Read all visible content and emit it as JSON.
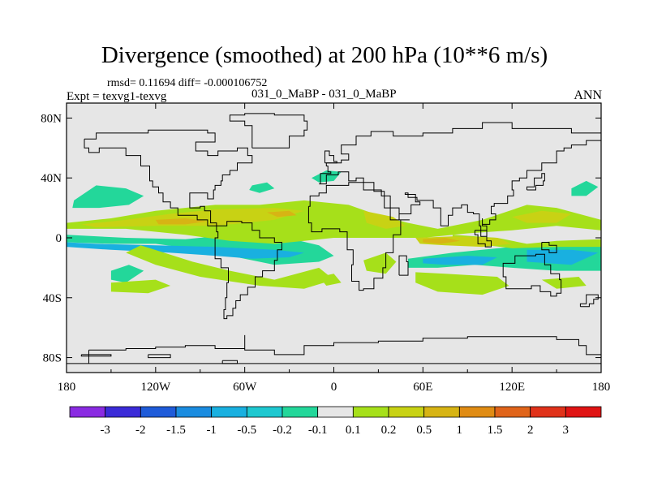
{
  "header": {
    "title": "Divergence (smoothed) at 200 hPa (10**6 m/s)",
    "stats": "rmsd= 0.11694 diff= -0.000106752",
    "expt": "Expt = texvg1-texvg",
    "case": "031_0_MaBP - 031_0_MaBP",
    "season": "ANN"
  },
  "chart_data": {
    "type": "contour-map",
    "title": "Divergence (smoothed) at 200 hPa (10**6 m/s)",
    "x_range": [
      -180,
      180
    ],
    "y_range": [
      -90,
      90
    ],
    "x_ticks": [
      {
        "value": -180,
        "label": "180"
      },
      {
        "value": -120,
        "label": "120W"
      },
      {
        "value": -60,
        "label": "60W"
      },
      {
        "value": 0,
        "label": "0"
      },
      {
        "value": 60,
        "label": "60E"
      },
      {
        "value": 120,
        "label": "120E"
      },
      {
        "value": 180,
        "label": "180"
      }
    ],
    "y_ticks": [
      {
        "value": 80,
        "label": "80N"
      },
      {
        "value": 40,
        "label": "40N"
      },
      {
        "value": 0,
        "label": "0"
      },
      {
        "value": -40,
        "label": "40S"
      },
      {
        "value": -80,
        "label": "80S"
      }
    ],
    "colorbar": {
      "colors": [
        "#8a2be2",
        "#3b2bd8",
        "#1f5bd9",
        "#1a8ce0",
        "#19b0e0",
        "#1ec8d0",
        "#23d79a",
        "#e6e6e6",
        "#a6e01a",
        "#c8d214",
        "#d7b414",
        "#e08c14",
        "#e0641a",
        "#e0321a",
        "#e01414"
      ],
      "labels": [
        "-3",
        "-2",
        "-1.5",
        "-1",
        "-0.5",
        "-0.2",
        "-0.1",
        "0.1",
        "0.2",
        "0.5",
        "1",
        "1.5",
        "2",
        "3"
      ]
    },
    "field_regions": [
      {
        "level": "-0.1",
        "color": "#23d79a",
        "points": [
          [
            -175,
            25
          ],
          [
            -160,
            35
          ],
          [
            -140,
            33
          ],
          [
            -128,
            28
          ],
          [
            -138,
            22
          ],
          [
            -158,
            20
          ],
          [
            -176,
            20
          ]
        ]
      },
      {
        "level": "-0.1",
        "color": "#23d79a",
        "points": [
          [
            -180,
            -3
          ],
          [
            -150,
            -4
          ],
          [
            -120,
            -4
          ],
          [
            -90,
            -8
          ],
          [
            -70,
            -12
          ],
          [
            -40,
            -18
          ],
          [
            -10,
            -16
          ],
          [
            0,
            -12
          ],
          [
            -10,
            -5
          ],
          [
            -40,
            2
          ],
          [
            -70,
            2
          ],
          [
            -100,
            -1
          ],
          [
            -140,
            0
          ],
          [
            -180,
            2
          ]
        ]
      },
      {
        "level": "-0.1",
        "color": "#23d79a",
        "points": [
          [
            -150,
            -22
          ],
          [
            -138,
            -18
          ],
          [
            -128,
            -22
          ],
          [
            -140,
            -30
          ],
          [
            -150,
            -28
          ]
        ]
      },
      {
        "level": "-0.1",
        "color": "#23d79a",
        "points": [
          [
            -55,
            35
          ],
          [
            -45,
            37
          ],
          [
            -40,
            33
          ],
          [
            -50,
            30
          ],
          [
            -57,
            32
          ]
        ]
      },
      {
        "level": "-0.1",
        "color": "#23d79a",
        "points": [
          [
            -15,
            40
          ],
          [
            -5,
            45
          ],
          [
            5,
            44
          ],
          [
            0,
            38
          ],
          [
            -10,
            37
          ]
        ]
      },
      {
        "level": "-0.1",
        "color": "#23d79a",
        "points": [
          [
            50,
            -14
          ],
          [
            80,
            -10
          ],
          [
            120,
            -6
          ],
          [
            150,
            -6
          ],
          [
            180,
            -5
          ],
          [
            180,
            -22
          ],
          [
            150,
            -22
          ],
          [
            120,
            -20
          ],
          [
            95,
            -18
          ],
          [
            70,
            -20
          ],
          [
            50,
            -20
          ]
        ]
      },
      {
        "level": "-0.1",
        "color": "#23d79a",
        "points": [
          [
            160,
            33
          ],
          [
            170,
            38
          ],
          [
            178,
            34
          ],
          [
            170,
            28
          ],
          [
            160,
            28
          ]
        ]
      },
      {
        "level": "-0.5",
        "color": "#19b0e0",
        "points": [
          [
            -180,
            -6
          ],
          [
            -150,
            -8
          ],
          [
            -110,
            -10
          ],
          [
            -80,
            -12
          ],
          [
            -55,
            -14
          ],
          [
            -30,
            -13
          ],
          [
            -20,
            -10
          ],
          [
            -40,
            -8
          ],
          [
            -80,
            -6
          ],
          [
            -120,
            -5
          ],
          [
            -160,
            -4
          ],
          [
            -180,
            -3
          ]
        ]
      },
      {
        "level": "-0.5",
        "color": "#19b0e0",
        "points": [
          [
            60,
            -14
          ],
          [
            90,
            -12
          ],
          [
            110,
            -13
          ],
          [
            100,
            -18
          ],
          [
            75,
            -18
          ],
          [
            60,
            -17
          ]
        ]
      },
      {
        "level": "-0.5",
        "color": "#19b0e0",
        "points": [
          [
            130,
            -8
          ],
          [
            160,
            -8
          ],
          [
            178,
            -10
          ],
          [
            160,
            -18
          ],
          [
            130,
            -16
          ]
        ]
      },
      {
        "level": "0.1",
        "color": "#a6e01a",
        "points": [
          [
            -180,
            10
          ],
          [
            -150,
            13
          ],
          [
            -120,
            18
          ],
          [
            -80,
            22
          ],
          [
            -50,
            22
          ],
          [
            -20,
            25
          ],
          [
            10,
            22
          ],
          [
            30,
            15
          ],
          [
            50,
            10
          ],
          [
            70,
            6
          ],
          [
            100,
            12
          ],
          [
            130,
            22
          ],
          [
            150,
            20
          ],
          [
            180,
            12
          ],
          [
            180,
            5
          ],
          [
            150,
            8
          ],
          [
            120,
            5
          ],
          [
            90,
            3
          ],
          [
            60,
            0
          ],
          [
            30,
            0
          ],
          [
            0,
            0
          ],
          [
            -20,
            -2
          ],
          [
            -40,
            -4
          ],
          [
            -70,
            -2
          ],
          [
            -100,
            2
          ],
          [
            -140,
            6
          ],
          [
            -180,
            6
          ]
        ]
      },
      {
        "level": "0.1",
        "color": "#a6e01a",
        "points": [
          [
            80,
            2
          ],
          [
            110,
            0
          ],
          [
            130,
            -4
          ],
          [
            150,
            -2
          ],
          [
            180,
            -1
          ],
          [
            180,
            -6
          ],
          [
            150,
            -6
          ],
          [
            120,
            -7
          ],
          [
            95,
            -4
          ],
          [
            80,
            -2
          ]
        ]
      },
      {
        "level": "0.1",
        "color": "#a6e01a",
        "points": [
          [
            -130,
            -5
          ],
          [
            -95,
            -16
          ],
          [
            -70,
            -22
          ],
          [
            -40,
            -28
          ],
          [
            -10,
            -20
          ],
          [
            0,
            -28
          ],
          [
            -20,
            -34
          ],
          [
            -50,
            -32
          ],
          [
            -90,
            -26
          ],
          [
            -120,
            -18
          ],
          [
            -140,
            -10
          ]
        ]
      },
      {
        "level": "0.1",
        "color": "#a6e01a",
        "points": [
          [
            55,
            -23
          ],
          [
            75,
            -24
          ],
          [
            110,
            -26
          ],
          [
            118,
            -32
          ],
          [
            100,
            -38
          ],
          [
            70,
            -36
          ],
          [
            55,
            -30
          ]
        ]
      },
      {
        "level": "0.1",
        "color": "#a6e01a",
        "points": [
          [
            -150,
            -30
          ],
          [
            -120,
            -28
          ],
          [
            -110,
            -32
          ],
          [
            -125,
            -37
          ],
          [
            -150,
            -36
          ]
        ]
      },
      {
        "level": "0.1",
        "color": "#a6e01a",
        "points": [
          [
            140,
            -28
          ],
          [
            165,
            -26
          ],
          [
            170,
            -32
          ],
          [
            150,
            -34
          ]
        ]
      },
      {
        "level": "0.1",
        "color": "#a6e01a",
        "points": [
          [
            20,
            -15
          ],
          [
            35,
            -10
          ],
          [
            42,
            -16
          ],
          [
            35,
            -24
          ],
          [
            22,
            -22
          ]
        ]
      },
      {
        "level": "0.1",
        "color": "#a6e01a",
        "points": [
          [
            -10,
            -26
          ],
          [
            0,
            -24
          ],
          [
            5,
            -30
          ],
          [
            -5,
            -32
          ]
        ]
      },
      {
        "level": "0.2",
        "color": "#c8d214",
        "points": [
          [
            -170,
            9
          ],
          [
            -140,
            12
          ],
          [
            -110,
            16
          ],
          [
            -80,
            19
          ],
          [
            -40,
            20
          ],
          [
            -20,
            18
          ],
          [
            -40,
            12
          ],
          [
            -80,
            8
          ],
          [
            -120,
            8
          ],
          [
            -160,
            7
          ]
        ]
      },
      {
        "level": "0.2",
        "color": "#c8d214",
        "points": [
          [
            20,
            18
          ],
          [
            40,
            14
          ],
          [
            48,
            8
          ],
          [
            35,
            6
          ],
          [
            22,
            10
          ]
        ]
      },
      {
        "level": "0.2",
        "color": "#c8d214",
        "points": [
          [
            55,
            0
          ],
          [
            80,
            1
          ],
          [
            110,
            0
          ],
          [
            120,
            -4
          ],
          [
            100,
            -6
          ],
          [
            75,
            -5
          ],
          [
            58,
            -4
          ]
        ]
      },
      {
        "level": "0.2",
        "color": "#c8d214",
        "points": [
          [
            120,
            14
          ],
          [
            140,
            18
          ],
          [
            160,
            16
          ],
          [
            150,
            10
          ],
          [
            130,
            10
          ]
        ]
      },
      {
        "level": "0.5",
        "color": "#d7b414",
        "points": [
          [
            -120,
            12
          ],
          [
            -100,
            13
          ],
          [
            -85,
            11
          ],
          [
            -100,
            9
          ],
          [
            -118,
            9
          ]
        ]
      },
      {
        "level": "0.5",
        "color": "#d7b414",
        "points": [
          [
            60,
            -1
          ],
          [
            75,
            0
          ],
          [
            85,
            -2
          ],
          [
            72,
            -4
          ],
          [
            60,
            -3
          ]
        ]
      },
      {
        "level": "0.5",
        "color": "#d7b414",
        "points": [
          [
            -45,
            17
          ],
          [
            -30,
            18
          ],
          [
            -25,
            15
          ],
          [
            -38,
            14
          ]
        ]
      }
    ]
  }
}
